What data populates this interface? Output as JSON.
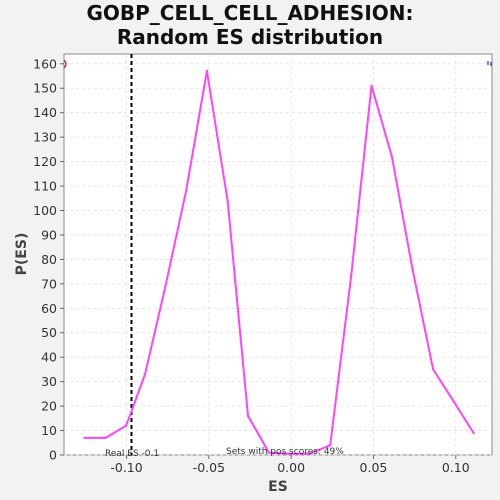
{
  "chart_data": {
    "type": "line",
    "title": "GOBP_CELL_CELL_ADHESION: Random ES distribution",
    "xlabel": "ES",
    "ylabel": "P(ES)",
    "xlim": [
      -0.138,
      0.122
    ],
    "ylim": [
      0,
      164
    ],
    "x_ticks": [
      -0.1,
      -0.05,
      0.0,
      0.05,
      0.1
    ],
    "x_tick_labels": [
      "-0.10",
      "-0.05",
      "0.00",
      "0.05",
      "0.10"
    ],
    "y_ticks": [
      0,
      10,
      20,
      30,
      40,
      50,
      60,
      70,
      80,
      90,
      100,
      110,
      120,
      130,
      140,
      150,
      160
    ],
    "grid": true,
    "series": [
      {
        "color": "#ff44ff",
        "x": [
          -0.1255,
          -0.1128,
          -0.1003,
          -0.0888,
          -0.0764,
          -0.0638,
          -0.0512,
          -0.0386,
          -0.0262,
          -0.0135,
          -0.001,
          0.0112,
          0.0237,
          0.0364,
          0.0488,
          0.0612,
          0.0737,
          0.0862,
          0.0986,
          0.1108
        ],
        "values": [
          7,
          7,
          12,
          33,
          69,
          108,
          157,
          104,
          16,
          1,
          0.5,
          0.5,
          4,
          73,
          151,
          122,
          76,
          35,
          22,
          9
        ]
      }
    ],
    "real_es": {
      "x": -0.097,
      "label": "Real ES -0.1",
      "color": "#000000",
      "style": "dashed"
    },
    "annotation": "Sets with pos scores: 49%",
    "marker_colors": {
      "left": "#cc2222",
      "right": "#2233aa"
    }
  }
}
